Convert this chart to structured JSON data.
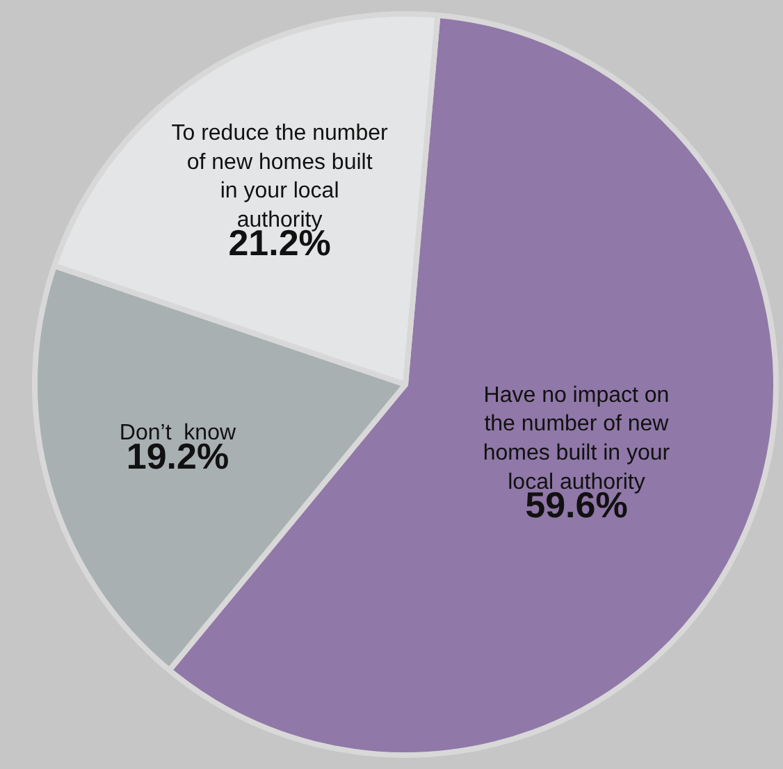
{
  "chart_data": {
    "type": "pie",
    "categories": [
      "Have no impact on the number of new homes built in your local authority",
      "Don’t  know",
      "To reduce the number of new homes built in your local authority"
    ],
    "values": [
      59.6,
      19.2,
      21.2
    ],
    "value_labels": [
      "59.6%",
      "19.2%",
      "21.2%"
    ],
    "colors": [
      "#9078a8",
      "#a9b0b2",
      "#e3e5e6"
    ],
    "legend": false
  }
}
